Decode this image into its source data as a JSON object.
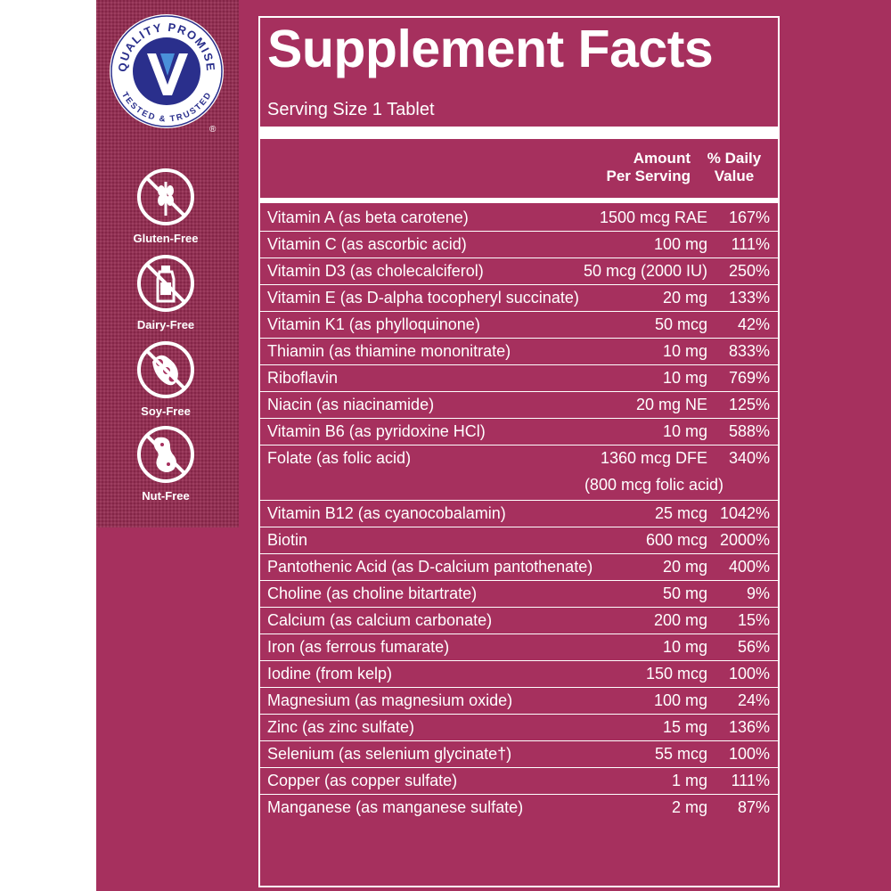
{
  "badge": {
    "top_text": "QUALITY PROMISE",
    "bottom_text": "TESTED & TRUSTED",
    "mark": "®"
  },
  "diet_icons": [
    {
      "label": "Gluten-Free",
      "icon": "wheat-crossed-icon"
    },
    {
      "label": "Dairy-Free",
      "icon": "milk-bottle-crossed-icon"
    },
    {
      "label": "Soy-Free",
      "icon": "soybean-crossed-icon"
    },
    {
      "label": "Nut-Free",
      "icon": "peanut-crossed-icon"
    }
  ],
  "facts": {
    "title": "Supplement Facts",
    "serving_size": "Serving Size 1 Tablet",
    "header_amount_line1": "Amount",
    "header_amount_line2": "Per Serving",
    "header_dv_line1": "% Daily",
    "header_dv_line2": "Value",
    "rows": [
      {
        "name": "Vitamin A (as beta carotene)",
        "amount": "1500 mcg RAE",
        "dv": "167%"
      },
      {
        "name": "Vitamin C (as ascorbic acid)",
        "amount": "100 mg",
        "dv": "111%"
      },
      {
        "name": "Vitamin D3 (as cholecalciferol)",
        "amount": "50 mcg (2000 IU)",
        "dv": "250%"
      },
      {
        "name": "Vitamin E (as D-alpha tocopheryl succinate)",
        "amount": "20 mg",
        "dv": "133%"
      },
      {
        "name": "Vitamin K1 (as phylloquinone)",
        "amount": "50 mcg",
        "dv": "42%"
      },
      {
        "name": "Thiamin (as thiamine mononitrate)",
        "amount": "10 mg",
        "dv": "833%"
      },
      {
        "name": "Riboflavin",
        "amount": "10 mg",
        "dv": "769%"
      },
      {
        "name": "Niacin (as niacinamide)",
        "amount": "20 mg NE",
        "dv": "125%"
      },
      {
        "name": "Vitamin B6 (as pyridoxine HCl)",
        "amount": "10 mg",
        "dv": "588%"
      },
      {
        "name": "Folate (as folic acid)",
        "amount": "1360 mcg DFE",
        "dv": "340%",
        "sub": "(800 mcg folic acid)"
      },
      {
        "name": "Vitamin B12 (as cyanocobalamin)",
        "amount": "25 mcg",
        "dv": "1042%"
      },
      {
        "name": "Biotin",
        "amount": "600 mcg",
        "dv": "2000%"
      },
      {
        "name": "Pantothenic Acid (as D-calcium pantothenate)",
        "amount": "20 mg",
        "dv": "400%"
      },
      {
        "name": "Choline (as choline bitartrate)",
        "amount": "50 mg",
        "dv": "9%"
      },
      {
        "name": "Calcium (as calcium carbonate)",
        "amount": "200 mg",
        "dv": "15%"
      },
      {
        "name": "Iron (as ferrous fumarate)",
        "amount": "10 mg",
        "dv": "56%"
      },
      {
        "name": "Iodine (from kelp)",
        "amount": "150 mcg",
        "dv": "100%"
      },
      {
        "name": "Magnesium (as magnesium oxide)",
        "amount": "100 mg",
        "dv": "24%"
      },
      {
        "name": "Zinc (as zinc sulfate)",
        "amount": "15 mg",
        "dv": "136%"
      },
      {
        "name": "Selenium (as selenium glycinate†)",
        "amount": "55 mcg",
        "dv": "100%"
      },
      {
        "name": "Copper (as copper sulfate)",
        "amount": "1 mg",
        "dv": "111%"
      },
      {
        "name": "Manganese (as manganese sulfate)",
        "amount": "2 mg",
        "dv": "87%"
      }
    ]
  }
}
